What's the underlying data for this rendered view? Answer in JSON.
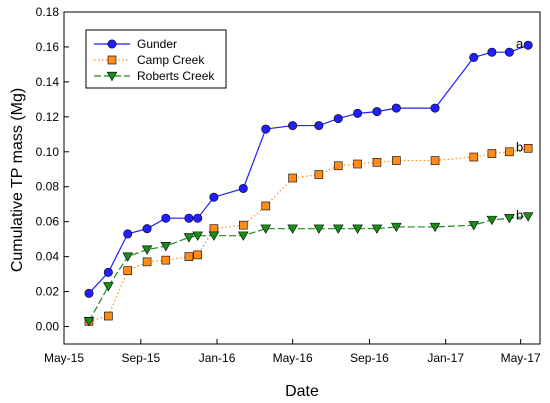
{
  "chart_data": {
    "type": "line",
    "xlabel": "Date",
    "ylabel": "Cumulative TP mass (Mg)",
    "x_ticks": [
      "May-15",
      "Sep-15",
      "Jan-16",
      "May-16",
      "Sep-16",
      "Jan-17",
      "May-17"
    ],
    "y_ticks": [
      "0.00",
      "0.02",
      "0.04",
      "0.06",
      "0.08",
      "0.10",
      "0.12",
      "0.14",
      "0.16",
      "0.18"
    ],
    "xlim": [
      "2015-05-01",
      "2017-06-01"
    ],
    "ylim": [
      -0.01,
      0.18
    ],
    "grid": false,
    "legend_position": "top-left",
    "series": [
      {
        "name": "Gunder",
        "color": "#1f1fff",
        "marker": "circle",
        "line_style": "solid",
        "end_label": "a",
        "points": [
          [
            "2015-06-10",
            0.019
          ],
          [
            "2015-07-11",
            0.031
          ],
          [
            "2015-08-11",
            0.053
          ],
          [
            "2015-09-11",
            0.056
          ],
          [
            "2015-10-11",
            0.062
          ],
          [
            "2015-11-17",
            0.062
          ],
          [
            "2015-12-01",
            0.062
          ],
          [
            "2015-12-27",
            0.074
          ],
          [
            "2016-02-12",
            0.079
          ],
          [
            "2016-03-19",
            0.113
          ],
          [
            "2016-05-01",
            0.115
          ],
          [
            "2016-06-12",
            0.115
          ],
          [
            "2016-07-13",
            0.119
          ],
          [
            "2016-08-13",
            0.122
          ],
          [
            "2016-09-13",
            0.123
          ],
          [
            "2016-10-14",
            0.125
          ],
          [
            "2016-12-15",
            0.125
          ],
          [
            "2017-02-15",
            0.154
          ],
          [
            "2017-03-16",
            0.157
          ],
          [
            "2017-04-13",
            0.157
          ],
          [
            "2017-05-13",
            0.161
          ]
        ]
      },
      {
        "name": "Camp Creek",
        "color": "#ff8c1a",
        "marker": "square",
        "line_style": "dotted",
        "end_label": "b",
        "points": [
          [
            "2015-06-10",
            0.003
          ],
          [
            "2015-07-11",
            0.006
          ],
          [
            "2015-08-11",
            0.032
          ],
          [
            "2015-09-11",
            0.037
          ],
          [
            "2015-10-11",
            0.038
          ],
          [
            "2015-11-17",
            0.04
          ],
          [
            "2015-12-01",
            0.041
          ],
          [
            "2015-12-27",
            0.056
          ],
          [
            "2016-02-12",
            0.058
          ],
          [
            "2016-03-19",
            0.069
          ],
          [
            "2016-05-01",
            0.085
          ],
          [
            "2016-06-12",
            0.087
          ],
          [
            "2016-07-13",
            0.092
          ],
          [
            "2016-08-13",
            0.093
          ],
          [
            "2016-09-13",
            0.094
          ],
          [
            "2016-10-14",
            0.095
          ],
          [
            "2016-12-15",
            0.095
          ],
          [
            "2017-02-15",
            0.097
          ],
          [
            "2017-03-16",
            0.099
          ],
          [
            "2017-04-13",
            0.1
          ],
          [
            "2017-05-13",
            0.102
          ]
        ]
      },
      {
        "name": "Roberts Creek",
        "color": "#1a8c1a",
        "marker": "triangle-down",
        "line_style": "dashed",
        "end_label": "b",
        "points": [
          [
            "2015-06-10",
            0.003
          ],
          [
            "2015-07-11",
            0.023
          ],
          [
            "2015-08-11",
            0.04
          ],
          [
            "2015-09-11",
            0.044
          ],
          [
            "2015-10-11",
            0.046
          ],
          [
            "2015-11-17",
            0.051
          ],
          [
            "2015-12-01",
            0.052
          ],
          [
            "2015-12-27",
            0.052
          ],
          [
            "2016-02-12",
            0.052
          ],
          [
            "2016-03-19",
            0.056
          ],
          [
            "2016-05-01",
            0.056
          ],
          [
            "2016-06-12",
            0.056
          ],
          [
            "2016-07-13",
            0.056
          ],
          [
            "2016-08-13",
            0.056
          ],
          [
            "2016-09-13",
            0.056
          ],
          [
            "2016-10-14",
            0.057
          ],
          [
            "2016-12-15",
            0.057
          ],
          [
            "2017-02-15",
            0.058
          ],
          [
            "2017-03-16",
            0.061
          ],
          [
            "2017-04-13",
            0.062
          ],
          [
            "2017-05-13",
            0.063
          ]
        ]
      }
    ]
  }
}
